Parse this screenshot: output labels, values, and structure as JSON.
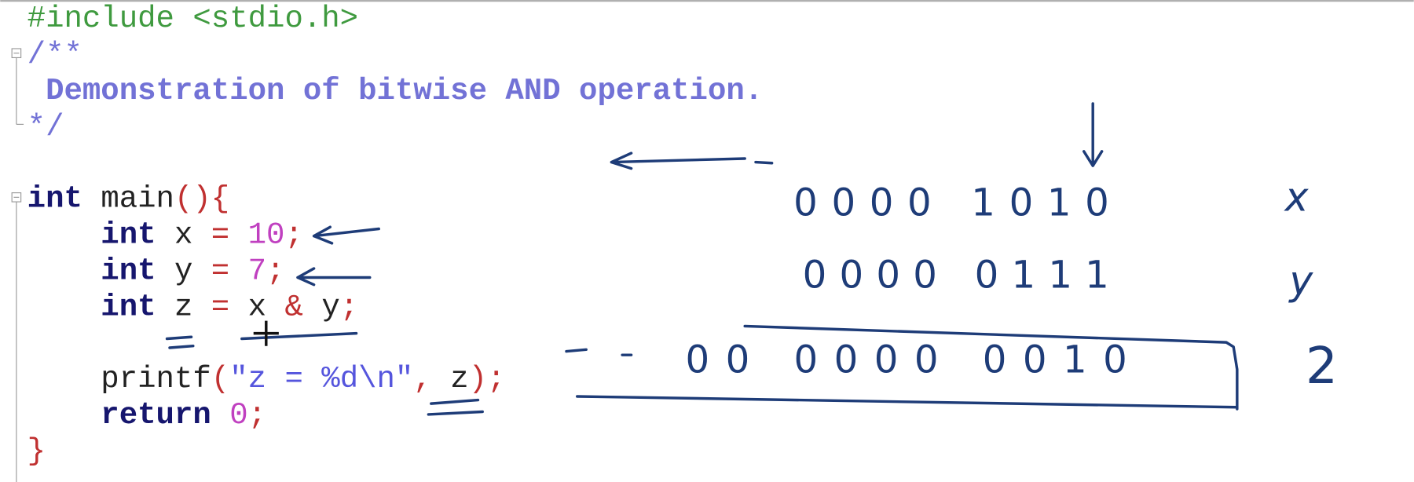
{
  "editor": {
    "lines": [
      {
        "segments": [
          {
            "text": "#include <stdio.h>",
            "color": "#3f9a3f"
          }
        ]
      },
      {
        "segments": [
          {
            "text": "/**",
            "color": "#7272d6"
          }
        ]
      },
      {
        "segments": [
          {
            "text": " Demonstration of bitwise AND operation.",
            "color": "#7272d6",
            "bold": true
          }
        ]
      },
      {
        "segments": [
          {
            "text": "*/",
            "color": "#7272d6"
          }
        ]
      },
      {
        "segments": []
      },
      {
        "segments": [
          {
            "text": "int",
            "color": "#16166e",
            "bold": true
          },
          {
            "text": " main",
            "color": "#222222"
          },
          {
            "text": "(){",
            "color": "#c03030"
          }
        ]
      },
      {
        "segments": [
          {
            "text": "    int",
            "color": "#16166e",
            "bold": true
          },
          {
            "text": " x ",
            "color": "#222222"
          },
          {
            "text": "=",
            "color": "#c03030"
          },
          {
            "text": " 10",
            "color": "#c040c0"
          },
          {
            "text": ";",
            "color": "#c03030"
          }
        ]
      },
      {
        "segments": [
          {
            "text": "    int",
            "color": "#16166e",
            "bold": true
          },
          {
            "text": " y ",
            "color": "#222222"
          },
          {
            "text": "=",
            "color": "#c03030"
          },
          {
            "text": " 7",
            "color": "#c040c0"
          },
          {
            "text": ";",
            "color": "#c03030"
          }
        ]
      },
      {
        "segments": [
          {
            "text": "    int",
            "color": "#16166e",
            "bold": true
          },
          {
            "text": " z ",
            "color": "#222222"
          },
          {
            "text": "=",
            "color": "#c03030"
          },
          {
            "text": " x ",
            "color": "#222222"
          },
          {
            "text": "&",
            "color": "#c03030"
          },
          {
            "text": " y",
            "color": "#222222"
          },
          {
            "text": ";",
            "color": "#c03030"
          }
        ]
      },
      {
        "segments": []
      },
      {
        "segments": [
          {
            "text": "    printf",
            "color": "#222222"
          },
          {
            "text": "(",
            "color": "#c03030"
          },
          {
            "text": "\"z = %d\\n\"",
            "color": "#5555dd"
          },
          {
            "text": ",",
            "color": "#c03030"
          },
          {
            "text": " z",
            "color": "#222222"
          },
          {
            "text": ");",
            "color": "#c03030"
          }
        ]
      },
      {
        "segments": [
          {
            "text": "    return",
            "color": "#16166e",
            "bold": true
          },
          {
            "text": " 0",
            "color": "#c040c0"
          },
          {
            "text": ";",
            "color": "#c03030"
          }
        ]
      },
      {
        "segments": [
          {
            "text": "}",
            "color": "#c03030"
          }
        ]
      }
    ]
  },
  "annotations": {
    "x_bits": "0000 1010",
    "x_label": "x",
    "y_bits": "0000 0111",
    "y_label": "y",
    "z_bits": "00 0000 0010",
    "z_label": "2"
  }
}
